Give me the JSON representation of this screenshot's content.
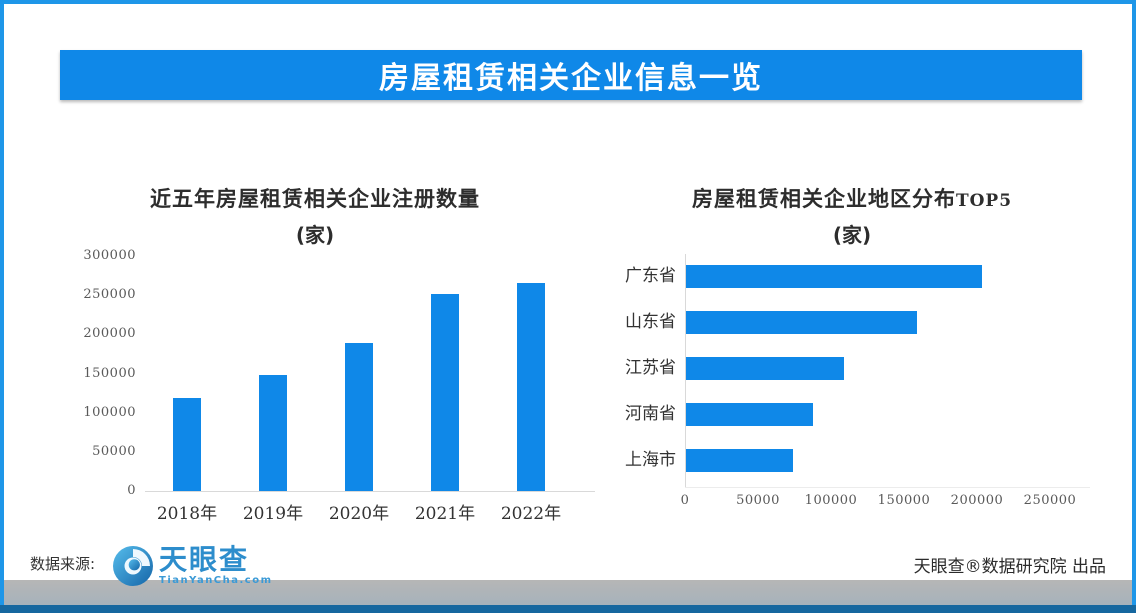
{
  "banner": {
    "title": "房屋租赁相关企业信息一览"
  },
  "chart_data": [
    {
      "type": "bar",
      "title": "近五年房屋租赁相关企业注册数量",
      "subtitle": "(家)",
      "categories": [
        "2018年",
        "2019年",
        "2020年",
        "2021年",
        "2022年"
      ],
      "values": [
        119000,
        148000,
        189000,
        251000,
        266000
      ],
      "xlabel": "",
      "ylabel": "",
      "ylim": [
        0,
        300000
      ],
      "yticks": [
        0,
        50000,
        100000,
        150000,
        200000,
        250000,
        300000
      ],
      "grid": false,
      "legend": false,
      "bar_color": "#0f88e8"
    },
    {
      "type": "bar-horizontal",
      "title": "房屋租赁相关企业地区分布",
      "title_suffix": "TOP5",
      "subtitle": "(家)",
      "categories": [
        "广东省",
        "山东省",
        "江苏省",
        "河南省",
        "上海市"
      ],
      "values": [
        203000,
        158000,
        108000,
        87000,
        73000
      ],
      "xlim": [
        0,
        250000
      ],
      "xticks": [
        0,
        50000,
        100000,
        150000,
        200000,
        250000
      ],
      "grid": false,
      "legend": false,
      "bar_color": "#0f88e8"
    }
  ],
  "footer": {
    "source_label": "数据来源:",
    "logo_name": "天眼查",
    "logo_domain": "TianYanCha.com",
    "credit": "天眼查®数据研究院 出品"
  },
  "colors": {
    "accent": "#0f88e8",
    "frame_border": "#1e96e8",
    "axis_text": "#595959",
    "label_text": "#333333",
    "axis_line": "#d9d9d9",
    "gray_bar": "#b3b3b3",
    "bottom_strip": "#16679f",
    "banner_text": "#ffffff"
  }
}
